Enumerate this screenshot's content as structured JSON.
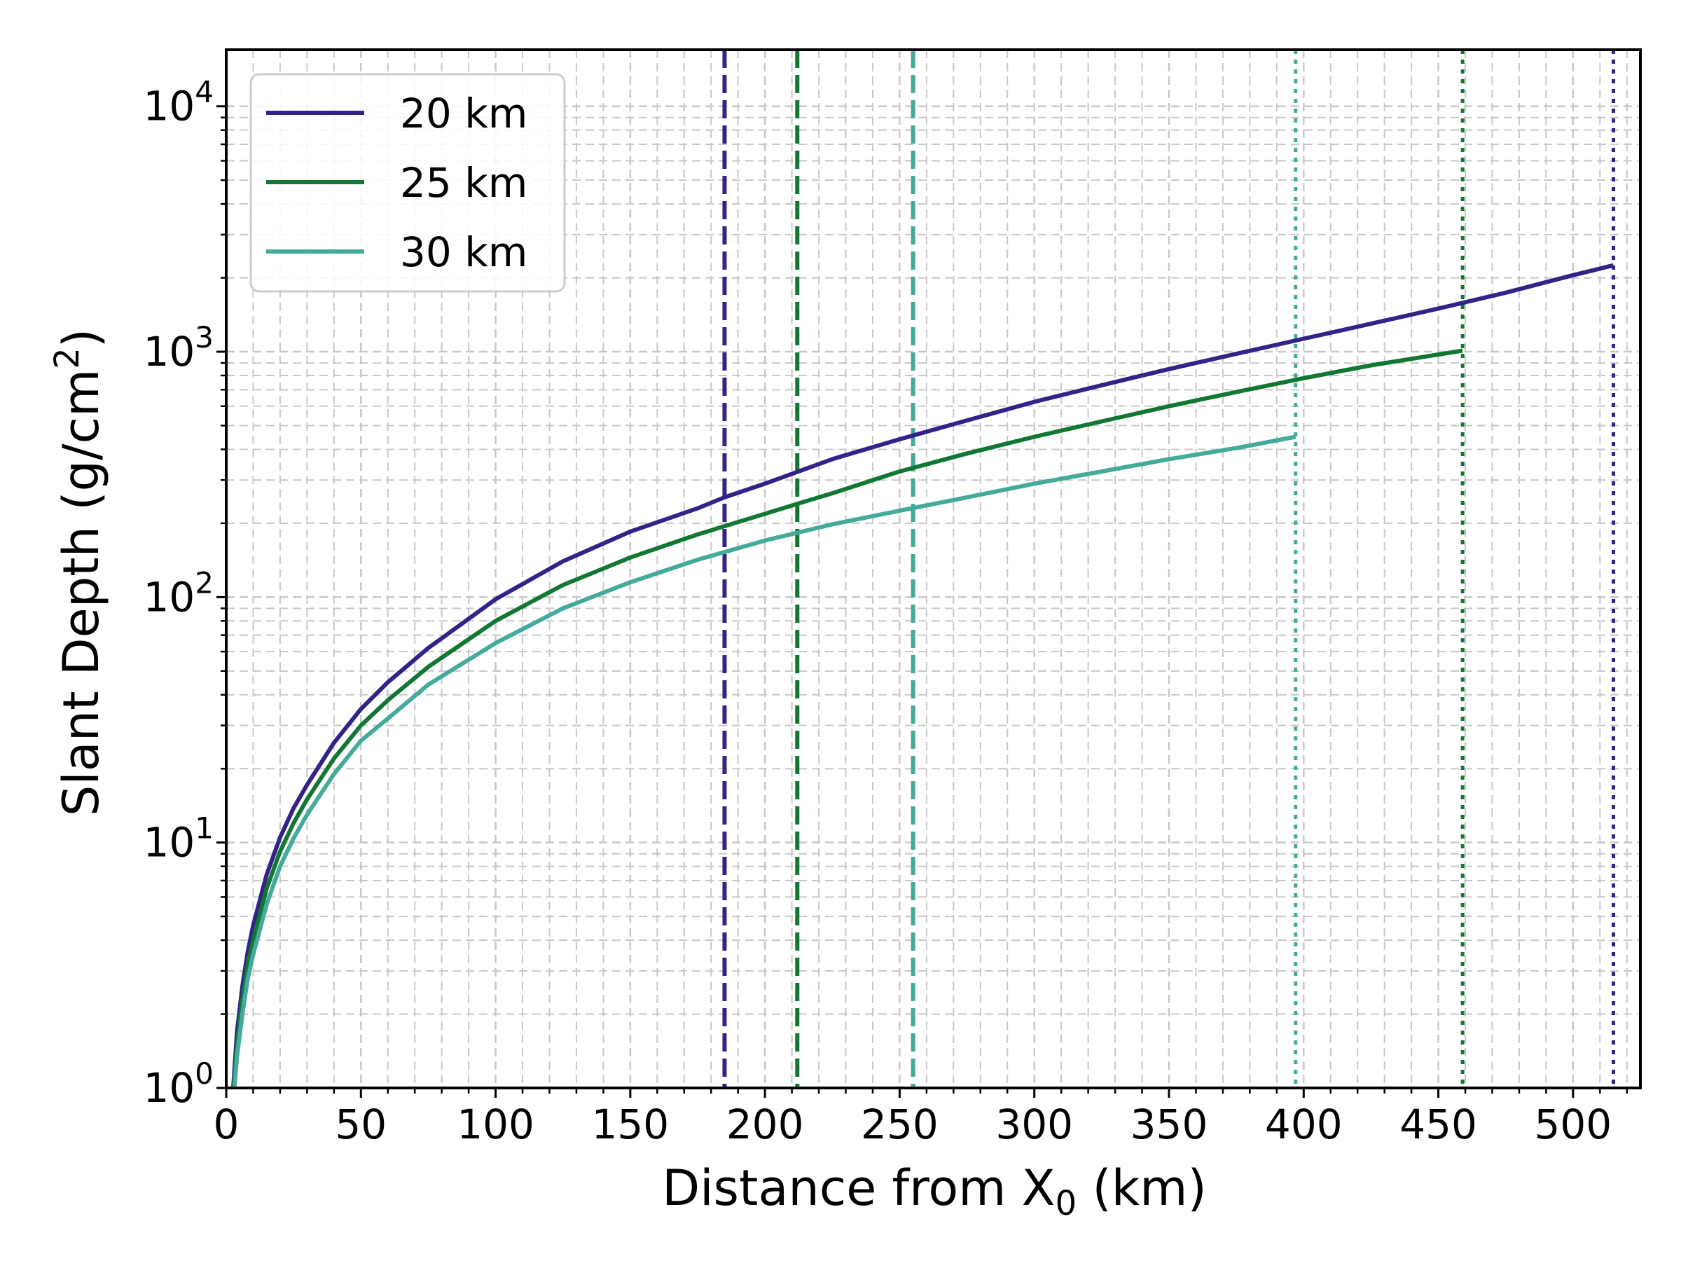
{
  "chart_data": {
    "type": "line",
    "xlabel": {
      "main": "Distance from X",
      "sub": "0",
      "unit": " (km)"
    },
    "ylabel": {
      "main": "Slant Depth (g/cm",
      "sup": "2",
      "close": ")"
    },
    "xlim": [
      0,
      525
    ],
    "ylim": [
      1,
      17000
    ],
    "yscale": "log",
    "grid": true,
    "legend_position": "top-left",
    "xticks": [
      0,
      50,
      100,
      150,
      200,
      250,
      300,
      350,
      400,
      450,
      500
    ],
    "yticks": [
      {
        "value": 1,
        "base": "10",
        "exp": "0"
      },
      {
        "value": 10,
        "base": "10",
        "exp": "1"
      },
      {
        "value": 100,
        "base": "10",
        "exp": "2"
      },
      {
        "value": 1000,
        "base": "10",
        "exp": "3"
      },
      {
        "value": 10000,
        "base": "10",
        "exp": "4"
      }
    ],
    "series": [
      {
        "name": "20 km",
        "color": "#332288",
        "x": [
          2.6,
          4,
          6,
          8,
          10,
          15,
          20,
          25,
          30,
          40,
          50,
          60,
          75,
          100,
          125,
          150,
          175,
          185,
          200,
          225,
          250,
          275,
          300,
          325,
          350,
          375,
          400,
          425,
          450,
          475,
          500,
          515
        ],
        "y": [
          1.0,
          1.7,
          2.6,
          3.6,
          4.6,
          7.4,
          10.5,
          13.8,
          17.2,
          25.5,
          35,
          45,
          62,
          98,
          140,
          185,
          230,
          255,
          290,
          365,
          440,
          525,
          625,
          730,
          850,
          980,
          1130,
          1300,
          1500,
          1740,
          2050,
          2250
        ]
      },
      {
        "name": "25 km",
        "color": "#117733",
        "x": [
          2.8,
          4,
          6,
          8,
          10,
          15,
          20,
          25,
          30,
          40,
          50,
          60,
          75,
          100,
          125,
          150,
          175,
          212,
          225,
          250,
          275,
          300,
          325,
          350,
          375,
          400,
          425,
          459
        ],
        "y": [
          1.0,
          1.5,
          2.3,
          3.2,
          4.0,
          6.5,
          9.2,
          12.0,
          15.0,
          22,
          30,
          38,
          52,
          80,
          112,
          145,
          180,
          240,
          265,
          325,
          385,
          450,
          520,
          600,
          685,
          780,
          880,
          1010
        ]
      },
      {
        "name": "30 km",
        "color": "#44AA99",
        "x": [
          3.0,
          4,
          6,
          8,
          10,
          15,
          20,
          25,
          30,
          40,
          50,
          60,
          75,
          100,
          125,
          150,
          175,
          200,
          225,
          250,
          275,
          300,
          325,
          350,
          375,
          397
        ],
        "y": [
          1.0,
          1.35,
          2.0,
          2.8,
          3.5,
          5.6,
          8.0,
          10.4,
          13.0,
          19,
          26,
          32,
          44,
          65,
          90,
          115,
          142,
          170,
          198,
          225,
          255,
          290,
          325,
          365,
          405,
          450
        ]
      }
    ],
    "vlines": [
      {
        "x": 185,
        "color": "#332288",
        "style": "dashed"
      },
      {
        "x": 212,
        "color": "#117733",
        "style": "dashed"
      },
      {
        "x": 255,
        "color": "#44AA99",
        "style": "dashed"
      },
      {
        "x": 397,
        "color": "#44AA99",
        "style": "dotted"
      },
      {
        "x": 459,
        "color": "#117733",
        "style": "dotted"
      },
      {
        "x": 515,
        "color": "#332288",
        "style": "dotted"
      }
    ]
  }
}
